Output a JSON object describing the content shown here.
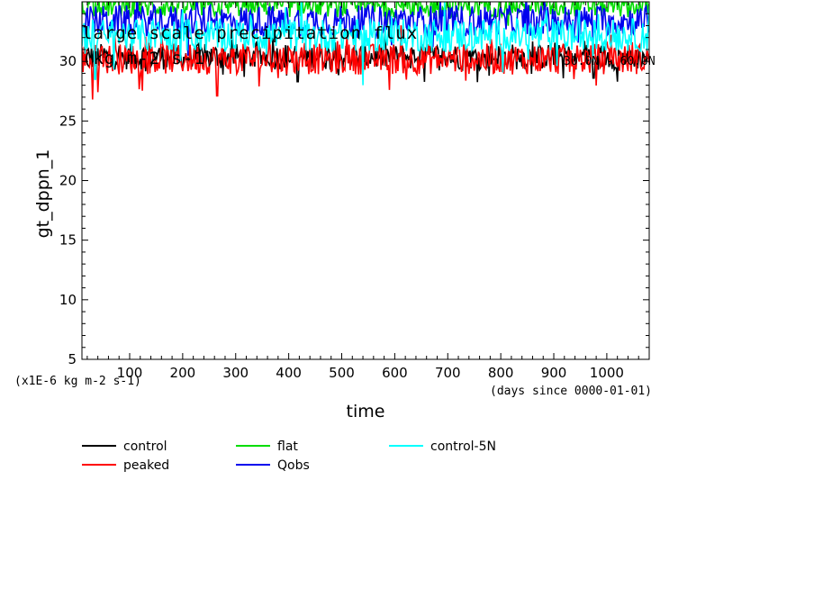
{
  "chart_data": {
    "type": "line",
    "title": "large scale precipitation flux",
    "units_line": "(kg m-2 s-1)",
    "corner_label": "30.0N - 60.0N",
    "ylabel": "gt_dppn_1",
    "xlabel": "time",
    "x_unit_note": "(days since 0000-01-01)",
    "y_scale_note": "(x1E-6 kg m-2 s-1)",
    "xlim": [
      10,
      1080
    ],
    "ylim": [
      5,
      35
    ],
    "x_ticks": [
      100,
      200,
      300,
      400,
      500,
      600,
      700,
      800,
      900,
      1000
    ],
    "y_ticks": [
      5,
      10,
      15,
      20,
      25,
      30
    ],
    "series": [
      {
        "name": "control",
        "color": "#000000",
        "base": 30.4,
        "amp": 1.1,
        "dips": [
          [
            417,
            28.3
          ],
          [
            975,
            28.6
          ],
          [
            1020,
            28.3
          ]
        ]
      },
      {
        "name": "peaked",
        "color": "#ff0000",
        "base": 30.2,
        "amp": 1.3,
        "dips": [
          [
            30,
            26.8
          ],
          [
            265,
            27.1
          ],
          [
            590,
            27.6
          ],
          [
            380,
            28.6
          ]
        ]
      },
      {
        "name": "flat",
        "color": "#00dd00",
        "base": 34.6,
        "amp": 0.9,
        "dips": []
      },
      {
        "name": "Qobs",
        "color": "#0000ee",
        "base": 33.4,
        "amp": 1.3,
        "dips": []
      },
      {
        "name": "control-5N",
        "color": "#00ffff",
        "base": 32.2,
        "amp": 1.4,
        "dips": [
          [
            540,
            28.0
          ],
          [
            35,
            28.5
          ]
        ]
      }
    ]
  }
}
